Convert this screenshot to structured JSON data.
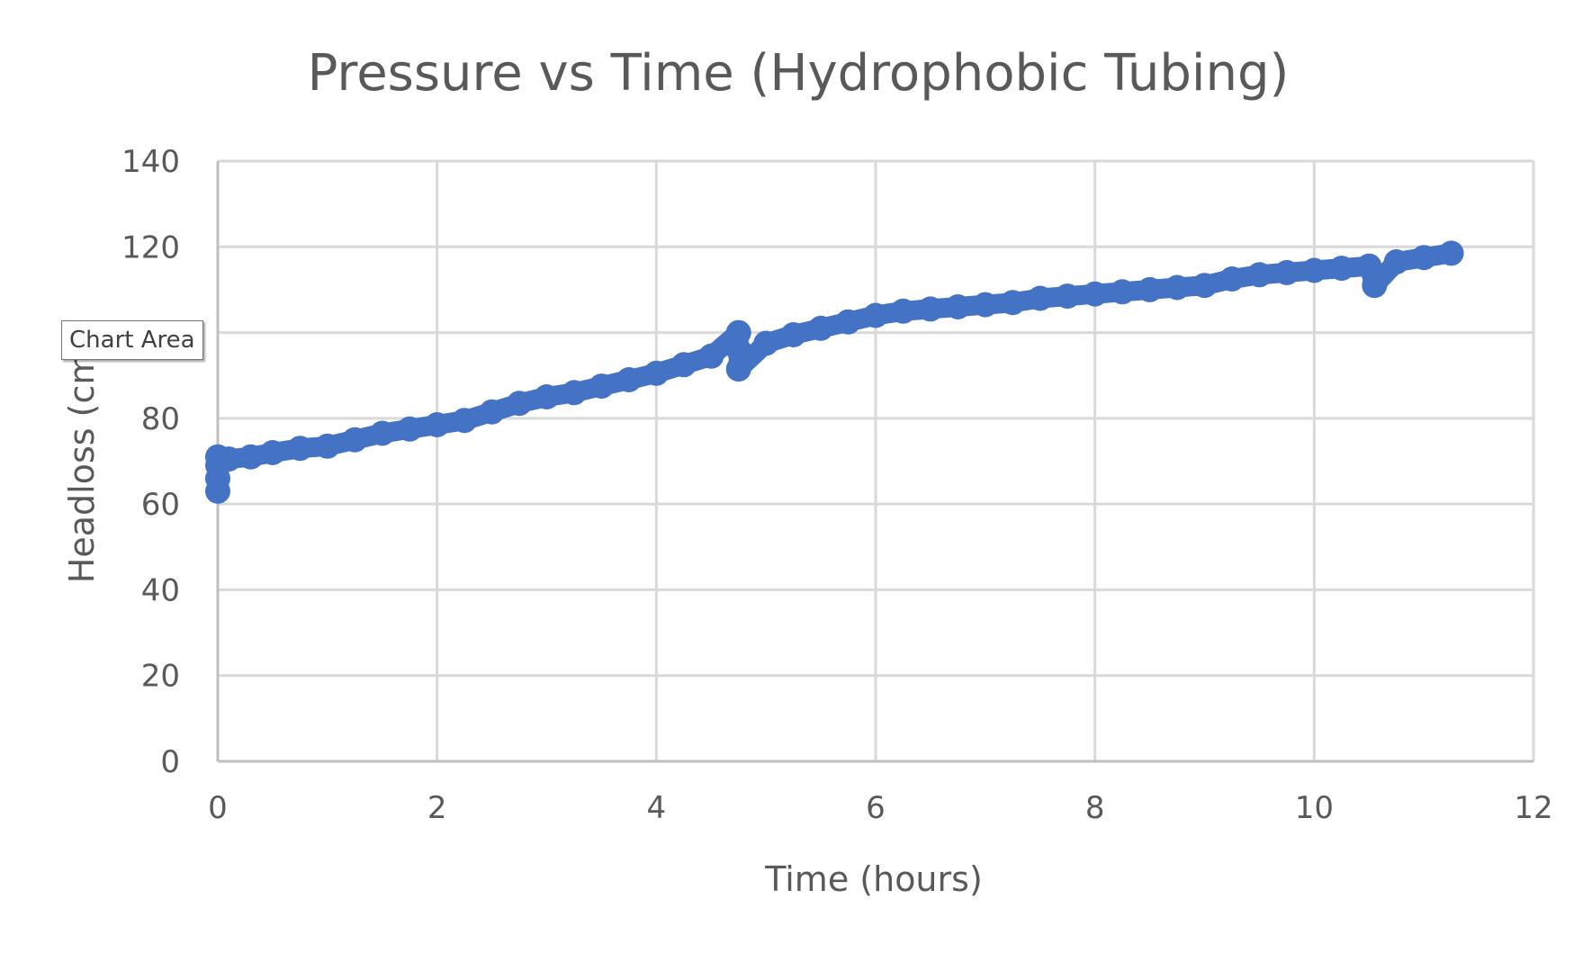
{
  "chart_data": {
    "type": "scatter",
    "title": "Pressure vs Time (Hydrophobic Tubing)",
    "xlabel": "Time (hours)",
    "ylabel": "Headloss (cm)",
    "xlim": [
      0,
      12
    ],
    "ylim": [
      0,
      140
    ],
    "x_ticks": [
      0,
      2,
      4,
      6,
      8,
      10,
      12
    ],
    "y_ticks": [
      0,
      20,
      40,
      60,
      80,
      100,
      120,
      140
    ],
    "grid": true,
    "legend": "none",
    "series_color": "#4472c4",
    "series": [
      {
        "x": [
          0,
          0,
          0,
          0,
          0.1,
          0.3,
          0.5,
          0.75,
          1.0,
          1.25,
          1.5,
          1.75,
          2.0,
          2.25,
          2.5,
          2.75,
          3.0,
          3.25,
          3.5,
          3.75,
          4.0,
          4.25,
          4.5,
          4.75,
          4.75,
          4.75,
          5.0,
          5.25,
          5.5,
          5.75,
          6.0,
          6.25,
          6.5,
          6.75,
          7.0,
          7.25,
          7.5,
          7.75,
          8.0,
          8.25,
          8.5,
          8.75,
          9.0,
          9.25,
          9.5,
          9.75,
          10.0,
          10.25,
          10.5,
          10.55,
          10.75,
          11.0,
          11.25
        ],
        "y": [
          63,
          66,
          69,
          71,
          70.5,
          71,
          72,
          73,
          73.5,
          75,
          76.5,
          77.5,
          78.5,
          79.5,
          81.5,
          83.5,
          85,
          86,
          87.5,
          89,
          90.5,
          92.5,
          94.5,
          100,
          96,
          91.5,
          97.5,
          99.5,
          101,
          102.5,
          104,
          105,
          105.5,
          106,
          106.5,
          107,
          108,
          108.5,
          109,
          109.5,
          110,
          110.5,
          111,
          112.5,
          113.5,
          114,
          114.5,
          115,
          115.5,
          111,
          116.5,
          117.5,
          118.5
        ]
      }
    ]
  },
  "tooltip": {
    "label": "Chart Area"
  }
}
